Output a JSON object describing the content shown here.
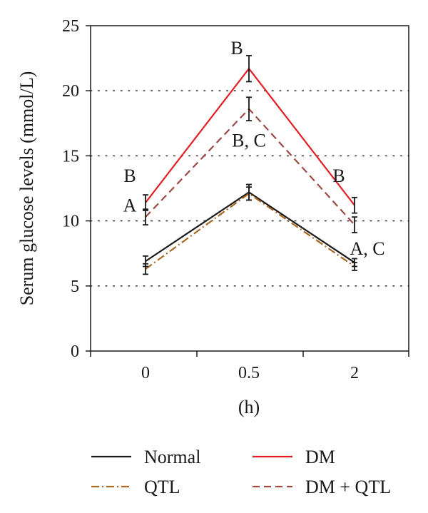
{
  "chart_data": {
    "type": "line",
    "title": "",
    "xlabel": "(h)",
    "ylabel": "Serum glucose levels (mmol/L)",
    "categories": [
      "0",
      "0.5",
      "2"
    ],
    "ylim": [
      0,
      25
    ],
    "yticks": [
      0,
      5,
      10,
      15,
      20,
      25
    ],
    "grid": "horizontal dotted at 5, 10, 15, 20",
    "legend_placement": "bottom",
    "series": [
      {
        "name": "Normal",
        "values": [
          6.9,
          12.2,
          6.8
        ],
        "errors": [
          0.4,
          0.6,
          0.3
        ],
        "color": "#1a1a1a",
        "dash": "solid"
      },
      {
        "name": "DM",
        "values": [
          11.4,
          21.7,
          11.2
        ],
        "errors": [
          0.6,
          1.0,
          0.6
        ],
        "color": "#e21e26",
        "dash": "solid"
      },
      {
        "name": "QTL",
        "values": [
          6.3,
          12.1,
          6.5
        ],
        "errors": [
          0.4,
          0.5,
          0.3
        ],
        "color": "#a86a22",
        "dash": "dashdot"
      },
      {
        "name": "DM + QTL",
        "values": [
          10.3,
          18.6,
          9.7
        ],
        "errors": [
          0.6,
          0.9,
          0.6
        ],
        "color": "#9b4a44",
        "dash": "dashed"
      }
    ],
    "annotations": [
      {
        "text": "B",
        "category": "0",
        "value": 13.5
      },
      {
        "text": "A",
        "category": "0",
        "value": 11.2
      },
      {
        "text": "B",
        "category": "0.5",
        "value": 23.3
      },
      {
        "text": "B, C",
        "category": "0.5",
        "value": 16.2
      },
      {
        "text": "B",
        "category": "2",
        "value": 13.5
      },
      {
        "text": "A, C",
        "category": "2",
        "value": 7.9
      }
    ]
  }
}
